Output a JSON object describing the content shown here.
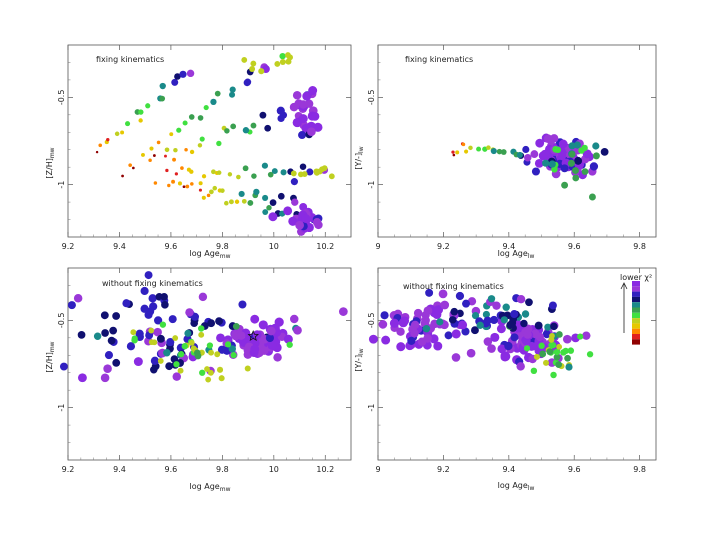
{
  "chart_data": [
    {
      "type": "scatter",
      "title": "fixing kinematics",
      "xlabel": "log Age",
      "xlabel_sub": "mw",
      "ylabel": "[Z/H]",
      "ylabel_sub": "mw",
      "xlim": [
        9.2,
        10.3
      ],
      "ylim": [
        -1.3,
        -0.2
      ],
      "xticks": [
        "9.2",
        "9.4",
        "9.6",
        "9.8",
        "10",
        "10.2"
      ],
      "yticks": [
        "-0.5",
        "-1"
      ],
      "tracks": [
        {
          "x0": 9.3,
          "y0": -0.82,
          "x1": 9.68,
          "y1": -0.35,
          "n": 18
        },
        {
          "x0": 9.42,
          "y0": -0.93,
          "x1": 9.98,
          "y1": -0.3,
          "n": 22
        },
        {
          "x0": 9.52,
          "y0": -0.86,
          "x1": 10.1,
          "y1": -0.58,
          "n": 22
        },
        {
          "x0": 9.58,
          "y0": -0.91,
          "x1": 10.18,
          "y1": -0.93,
          "n": 22
        },
        {
          "x0": 9.55,
          "y0": -0.99,
          "x1": 10.12,
          "y1": -1.12,
          "n": 20
        },
        {
          "x0": 9.65,
          "y0": -1.02,
          "x1": 10.15,
          "y1": -1.2,
          "n": 16
        }
      ],
      "clusters": [
        {
          "x": 10.12,
          "y": -0.58,
          "sx": 0.03,
          "sy": 0.07,
          "n": 26,
          "chi": 0.9
        },
        {
          "x": 10.12,
          "y": -1.2,
          "sx": 0.04,
          "sy": 0.03,
          "n": 22,
          "chi": 0.9
        },
        {
          "x": 9.98,
          "y": -0.3,
          "sx": 0.04,
          "sy": 0.03,
          "n": 10,
          "chi": 0.4
        },
        {
          "x": 10.15,
          "y": -0.93,
          "sx": 0.04,
          "sy": 0.015,
          "n": 10,
          "chi": 0.35
        }
      ]
    },
    {
      "type": "scatter",
      "title": "fixing kinematics",
      "xlabel": "log Age",
      "xlabel_sub": "lw",
      "ylabel": "[Y/-]",
      "ylabel_sub": "lw",
      "xlim": [
        9.0,
        9.85
      ],
      "ylim": [
        -1.3,
        -0.2
      ],
      "xticks": [
        "9",
        "9.2",
        "9.4",
        "9.6",
        "9.8"
      ],
      "yticks": [
        "-0.5",
        "-1"
      ],
      "tracks": [
        {
          "x0": 9.22,
          "y0": -0.79,
          "x1": 9.48,
          "y1": -0.84,
          "n": 22
        }
      ],
      "clusters": [
        {
          "x": 9.56,
          "y": -0.85,
          "sx": 0.04,
          "sy": 0.05,
          "n": 70,
          "chi": 0.88
        },
        {
          "x": 9.62,
          "y": -0.87,
          "sx": 0.05,
          "sy": 0.06,
          "n": 22,
          "chi": 0.55
        }
      ]
    },
    {
      "type": "scatter",
      "title": "without fixing kinematics",
      "xlabel": "log Age",
      "xlabel_sub": "mw",
      "ylabel": "[Z/H]",
      "ylabel_sub": "mw",
      "xlim": [
        9.2,
        10.3
      ],
      "ylim": [
        -1.3,
        -0.2
      ],
      "xticks": [
        "9.2",
        "9.4",
        "9.6",
        "9.8",
        "10",
        "10.2"
      ],
      "yticks": [
        "-0.5",
        "-1"
      ],
      "tracks": [],
      "clusters": [
        {
          "x": 9.95,
          "y": -0.62,
          "sx": 0.07,
          "sy": 0.05,
          "n": 70,
          "chi": 0.92
        },
        {
          "x": 9.58,
          "y": -0.55,
          "sx": 0.16,
          "sy": 0.14,
          "n": 85,
          "chi": 0.78
        },
        {
          "x": 9.68,
          "y": -0.72,
          "sx": 0.13,
          "sy": 0.1,
          "n": 40,
          "chi": 0.4
        }
      ],
      "star": {
        "x": 9.92,
        "y": -0.59
      }
    },
    {
      "type": "scatter",
      "title": "without fixing kinematics",
      "xlabel": "log Age",
      "xlabel_sub": "lw",
      "ylabel": "[Y/-]",
      "ylabel_sub": "lw",
      "xlim": [
        9.0,
        9.85
      ],
      "ylim": [
        -1.3,
        -0.2
      ],
      "xticks": [
        "9",
        "9.2",
        "9.4",
        "9.6",
        "9.8"
      ],
      "yticks": [
        "-0.5",
        "-1"
      ],
      "tracks": [],
      "clusters": [
        {
          "x": 9.46,
          "y": -0.63,
          "sx": 0.06,
          "sy": 0.05,
          "n": 70,
          "chi": 0.92
        },
        {
          "x": 9.15,
          "y": -0.55,
          "sx": 0.09,
          "sy": 0.07,
          "n": 70,
          "chi": 0.9
        },
        {
          "x": 9.38,
          "y": -0.48,
          "sx": 0.08,
          "sy": 0.06,
          "n": 45,
          "chi": 0.72
        },
        {
          "x": 9.56,
          "y": -0.68,
          "sx": 0.05,
          "sy": 0.05,
          "n": 30,
          "chi": 0.45
        }
      ]
    }
  ],
  "colorbar": {
    "label": "lower χ²",
    "colors": [
      "#8a2be2",
      "#9a38d8",
      "#3020c0",
      "#101070",
      "#1a8a8a",
      "#3aa050",
      "#40e040",
      "#c0d020",
      "#e6c800",
      "#ff8800",
      "#e02020",
      "#900000"
    ]
  }
}
